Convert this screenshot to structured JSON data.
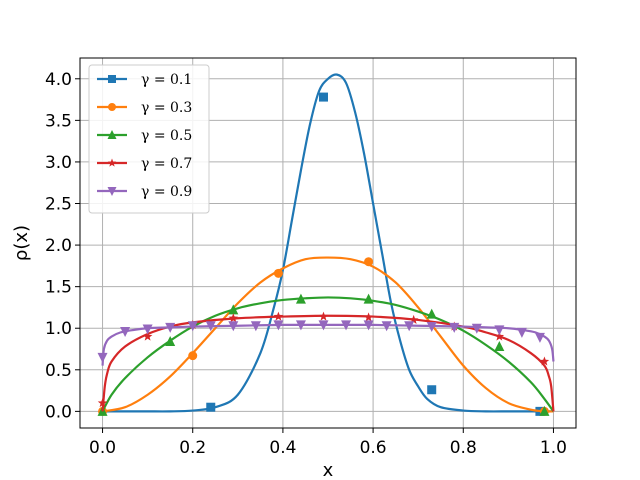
{
  "chart_data": {
    "type": "line",
    "xlabel": "x",
    "ylabel": "ρ(x)",
    "xlim": [
      -0.05,
      1.05
    ],
    "ylim": [
      -0.2,
      4.25
    ],
    "xticks": [
      0.0,
      0.2,
      0.4,
      0.6,
      0.8,
      1.0
    ],
    "xtick_labels": [
      "0.0",
      "0.2",
      "0.4",
      "0.6",
      "0.8",
      "1.0"
    ],
    "yticks": [
      0.0,
      0.5,
      1.0,
      1.5,
      2.0,
      2.5,
      3.0,
      3.5,
      4.0
    ],
    "ytick_labels": [
      "0.0",
      "0.5",
      "1.0",
      "1.5",
      "2.0",
      "2.5",
      "3.0",
      "3.5",
      "4.0"
    ],
    "grid": true,
    "legend_position": "top-left",
    "series": [
      {
        "name": "γ = 0.1",
        "color": "#1f77b4",
        "marker": "square",
        "x": [
          0.0,
          0.05,
          0.1,
          0.15,
          0.2,
          0.25,
          0.3,
          0.35,
          0.38,
          0.4,
          0.42,
          0.44,
          0.46,
          0.48,
          0.5,
          0.52,
          0.54,
          0.56,
          0.58,
          0.6,
          0.62,
          0.64,
          0.66,
          0.68,
          0.7,
          0.72,
          0.75,
          0.8,
          0.85,
          0.9,
          0.95,
          1.0
        ],
        "y": [
          0.0,
          0.0,
          0.0,
          0.0,
          0.01,
          0.05,
          0.2,
          0.7,
          1.25,
          1.7,
          2.3,
          2.9,
          3.45,
          3.85,
          4.0,
          4.05,
          3.95,
          3.6,
          3.1,
          2.5,
          1.9,
          1.3,
          0.85,
          0.5,
          0.3,
          0.15,
          0.05,
          0.01,
          0.0,
          0.0,
          0.0,
          0.0
        ],
        "marker_x": [
          0.24,
          0.49,
          0.73,
          0.97
        ],
        "marker_y": [
          0.05,
          3.78,
          0.26,
          0.0
        ]
      },
      {
        "name": "γ = 0.3",
        "color": "#ff7f0e",
        "marker": "circle",
        "x": [
          0.0,
          0.05,
          0.1,
          0.15,
          0.2,
          0.25,
          0.3,
          0.35,
          0.4,
          0.45,
          0.5,
          0.55,
          0.6,
          0.65,
          0.7,
          0.75,
          0.8,
          0.85,
          0.9,
          0.95,
          0.98,
          1.0
        ],
        "y": [
          0.0,
          0.05,
          0.2,
          0.42,
          0.7,
          1.0,
          1.3,
          1.55,
          1.72,
          1.83,
          1.85,
          1.83,
          1.74,
          1.55,
          1.25,
          0.9,
          0.55,
          0.28,
          0.1,
          0.02,
          0.0,
          0.0
        ],
        "marker_x": [
          0.0,
          0.2,
          0.39,
          0.59,
          0.98
        ],
        "marker_y": [
          0.0,
          0.67,
          1.66,
          1.8,
          0.0
        ]
      },
      {
        "name": "γ = 0.5",
        "color": "#2ca02c",
        "marker": "triangle-up",
        "x": [
          0.0,
          0.02,
          0.05,
          0.1,
          0.15,
          0.2,
          0.25,
          0.3,
          0.35,
          0.4,
          0.45,
          0.5,
          0.55,
          0.6,
          0.65,
          0.7,
          0.75,
          0.8,
          0.85,
          0.9,
          0.95,
          0.98,
          1.0
        ],
        "y": [
          0.0,
          0.2,
          0.4,
          0.65,
          0.85,
          1.02,
          1.15,
          1.24,
          1.3,
          1.34,
          1.36,
          1.37,
          1.36,
          1.33,
          1.28,
          1.2,
          1.1,
          0.97,
          0.8,
          0.6,
          0.35,
          0.15,
          0.0
        ],
        "marker_x": [
          0.0,
          0.15,
          0.29,
          0.44,
          0.59,
          0.73,
          0.88,
          0.98
        ],
        "marker_y": [
          0.0,
          0.84,
          1.22,
          1.35,
          1.35,
          1.17,
          0.78,
          0.0
        ]
      },
      {
        "name": "γ = 0.7",
        "color": "#d62728",
        "marker": "star",
        "x": [
          0.0,
          0.005,
          0.01,
          0.02,
          0.05,
          0.1,
          0.15,
          0.2,
          0.3,
          0.4,
          0.5,
          0.6,
          0.7,
          0.8,
          0.85,
          0.9,
          0.95,
          0.98,
          0.99,
          0.995,
          1.0
        ],
        "y": [
          0.0,
          0.3,
          0.45,
          0.6,
          0.78,
          0.93,
          1.02,
          1.07,
          1.12,
          1.14,
          1.15,
          1.14,
          1.1,
          1.02,
          0.95,
          0.86,
          0.7,
          0.55,
          0.42,
          0.3,
          0.0
        ],
        "marker_x": [
          0.0,
          0.1,
          0.2,
          0.29,
          0.39,
          0.49,
          0.59,
          0.69,
          0.78,
          0.88,
          0.98
        ],
        "marker_y": [
          0.1,
          0.9,
          1.04,
          1.12,
          1.14,
          1.14,
          1.13,
          1.1,
          1.02,
          0.9,
          0.6
        ]
      },
      {
        "name": "γ = 0.9",
        "color": "#9467bd",
        "marker": "triangle-down",
        "x": [
          0.0,
          0.003,
          0.01,
          0.02,
          0.04,
          0.07,
          0.1,
          0.15,
          0.2,
          0.3,
          0.4,
          0.5,
          0.6,
          0.7,
          0.8,
          0.85,
          0.9,
          0.93,
          0.96,
          0.98,
          0.99,
          0.997,
          1.0
        ],
        "y": [
          0.55,
          0.75,
          0.85,
          0.9,
          0.95,
          0.98,
          1.0,
          1.01,
          1.02,
          1.03,
          1.04,
          1.04,
          1.04,
          1.03,
          1.02,
          1.01,
          1.0,
          0.98,
          0.95,
          0.9,
          0.85,
          0.75,
          0.6
        ],
        "marker_x": [
          0.0,
          0.05,
          0.1,
          0.15,
          0.2,
          0.24,
          0.29,
          0.34,
          0.39,
          0.44,
          0.49,
          0.54,
          0.59,
          0.63,
          0.68,
          0.73,
          0.78,
          0.83,
          0.88,
          0.93,
          0.97
        ],
        "marker_y": [
          0.65,
          0.96,
          0.99,
          1.01,
          1.03,
          1.03,
          1.03,
          1.03,
          1.04,
          1.04,
          1.04,
          1.04,
          1.04,
          1.03,
          1.03,
          1.02,
          1.01,
          1.0,
          0.98,
          0.95,
          0.89
        ]
      }
    ]
  }
}
